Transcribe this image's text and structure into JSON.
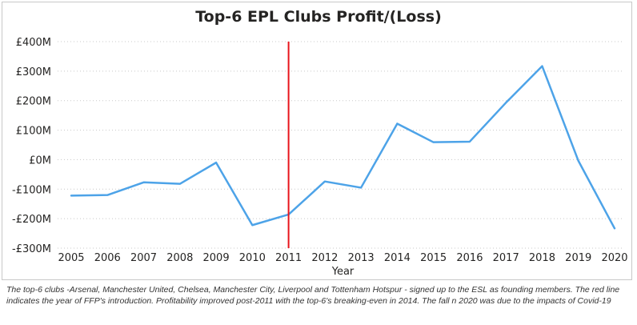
{
  "chart_data": {
    "type": "line",
    "title": "Top-6 EPL Clubs Profit/(Loss)",
    "xlabel": "Year",
    "ylabel": "",
    "x": [
      "2005",
      "2006",
      "2007",
      "2008",
      "2009",
      "2010",
      "2011",
      "2012",
      "2013",
      "2014",
      "2015",
      "2016",
      "2017",
      "2018",
      "2019",
      "2020"
    ],
    "series": [
      {
        "values": [
          -122,
          -120,
          -77,
          -82,
          -10,
          -222,
          -186,
          -74,
          -95,
          122,
          59,
          61,
          193,
          317,
          -4,
          -233
        ],
        "color": "#4da3e8"
      }
    ],
    "ylim": [
      -300,
      400
    ],
    "yticks": [
      -300,
      -200,
      -100,
      0,
      100,
      200,
      300,
      400
    ],
    "ytick_labels": [
      "-£300M",
      "-£200M",
      "-£100M",
      "£0M",
      "£100M",
      "£200M",
      "£300M",
      "£400M"
    ],
    "grid": true,
    "marker_line": {
      "x": "2011",
      "color": "#e8141b"
    }
  },
  "caption": "The top-6 clubs -Arsenal, Manchester United, Chelsea, Manchester City, Liverpool and Tottenham Hotspur - signed up to the ESL as founding members. The red line indicates the year of FFP's introduction. Profitability improved post-2011 with the top-6's breaking-even in 2014. The fall n 2020 was due to the impacts of Covid-19"
}
